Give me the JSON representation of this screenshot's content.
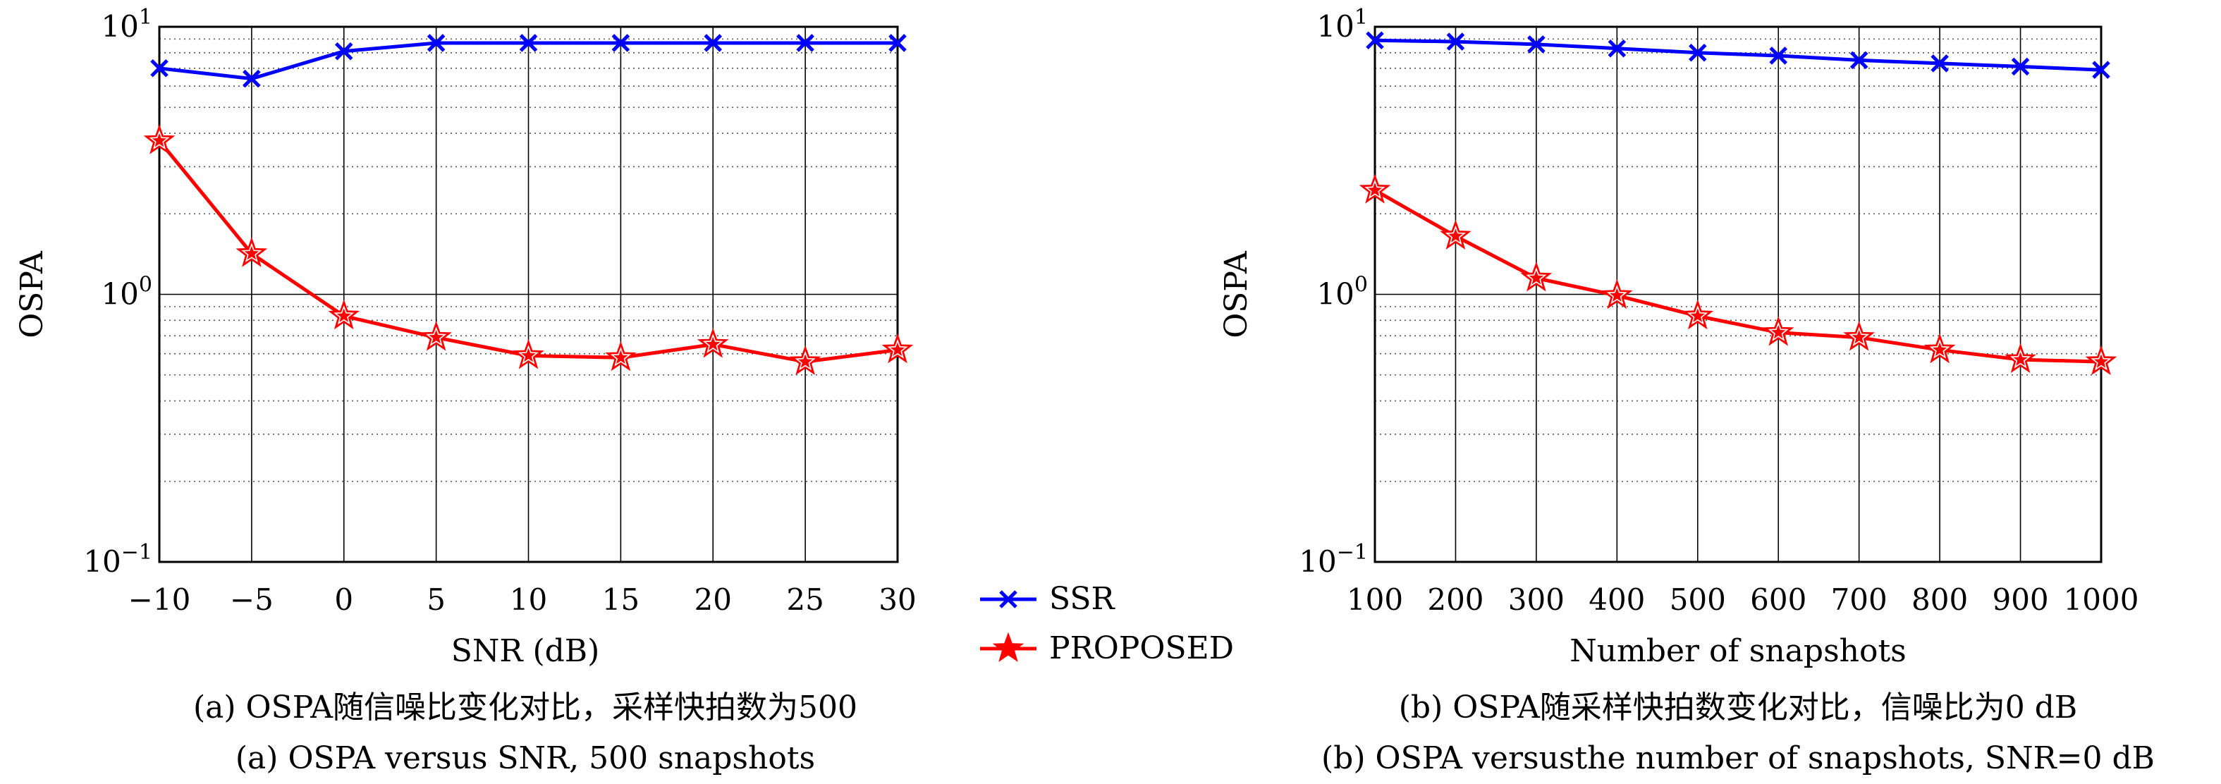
{
  "chart_data": [
    {
      "type": "line",
      "xlabel": "SNR (dB)",
      "ylabel": "OSPA",
      "yscale": "log",
      "xlim": [
        -10,
        30
      ],
      "ylim": [
        0.1,
        10
      ],
      "grid": true,
      "x": [
        -10,
        -5,
        0,
        5,
        10,
        15,
        20,
        25,
        30
      ],
      "x_tick_labels": [
        "−10",
        "−5",
        "0",
        "5",
        "10",
        "15",
        "20",
        "25",
        "30"
      ],
      "y_ticks": [
        {
          "value": 0.1,
          "base": "10",
          "exp": "−1"
        },
        {
          "value": 1,
          "base": "10",
          "exp": "0"
        },
        {
          "value": 10,
          "base": "10",
          "exp": "1"
        }
      ],
      "series": [
        {
          "name": "SSR",
          "color": "#0000ff",
          "marker": "x-icon",
          "values": [
            7.0,
            6.4,
            8.1,
            8.7,
            8.7,
            8.7,
            8.7,
            8.7,
            8.7
          ]
        },
        {
          "name": "PROPOSED",
          "color": "#ff0000",
          "marker": "star-icon",
          "values": [
            3.75,
            1.42,
            0.83,
            0.69,
            0.59,
            0.58,
            0.65,
            0.56,
            0.62
          ]
        }
      ],
      "caption_cn": "(a) OSPA随信噪比变化对比，采样快拍数为500",
      "caption_en": "(a) OSPA versus SNR, 500 snapshots"
    },
    {
      "type": "line",
      "xlabel": "Number of snapshots",
      "ylabel": "OSPA",
      "yscale": "log",
      "xlim": [
        100,
        1000
      ],
      "ylim": [
        0.1,
        10
      ],
      "grid": true,
      "x": [
        100,
        200,
        300,
        400,
        500,
        600,
        700,
        800,
        900,
        1000
      ],
      "x_tick_labels": [
        "100",
        "200",
        "300",
        "400",
        "500",
        "600",
        "700",
        "800",
        "900",
        "1000"
      ],
      "y_ticks": [
        {
          "value": 0.1,
          "base": "10",
          "exp": "−1"
        },
        {
          "value": 1,
          "base": "10",
          "exp": "0"
        },
        {
          "value": 10,
          "base": "10",
          "exp": "1"
        }
      ],
      "series": [
        {
          "name": "SSR",
          "color": "#0000ff",
          "marker": "x-icon",
          "values": [
            8.9,
            8.8,
            8.6,
            8.3,
            8.0,
            7.8,
            7.5,
            7.3,
            7.1,
            6.9
          ]
        },
        {
          "name": "PROPOSED",
          "color": "#ff0000",
          "marker": "star-icon",
          "values": [
            2.45,
            1.65,
            1.15,
            0.99,
            0.83,
            0.72,
            0.69,
            0.62,
            0.57,
            0.56
          ]
        }
      ],
      "caption_cn": "(b) OSPA随采样快拍数变化对比，信噪比为0 dB",
      "caption_en": "(b) OSPA versusthe number of snapshots, SNR=0 dB"
    }
  ],
  "legend": {
    "placement": "between-panels",
    "entries": [
      {
        "label": "SSR",
        "color": "#0000ff",
        "marker": "x-icon"
      },
      {
        "label": "PROPOSED",
        "color": "#ff0000",
        "marker": "star-icon"
      }
    ]
  }
}
